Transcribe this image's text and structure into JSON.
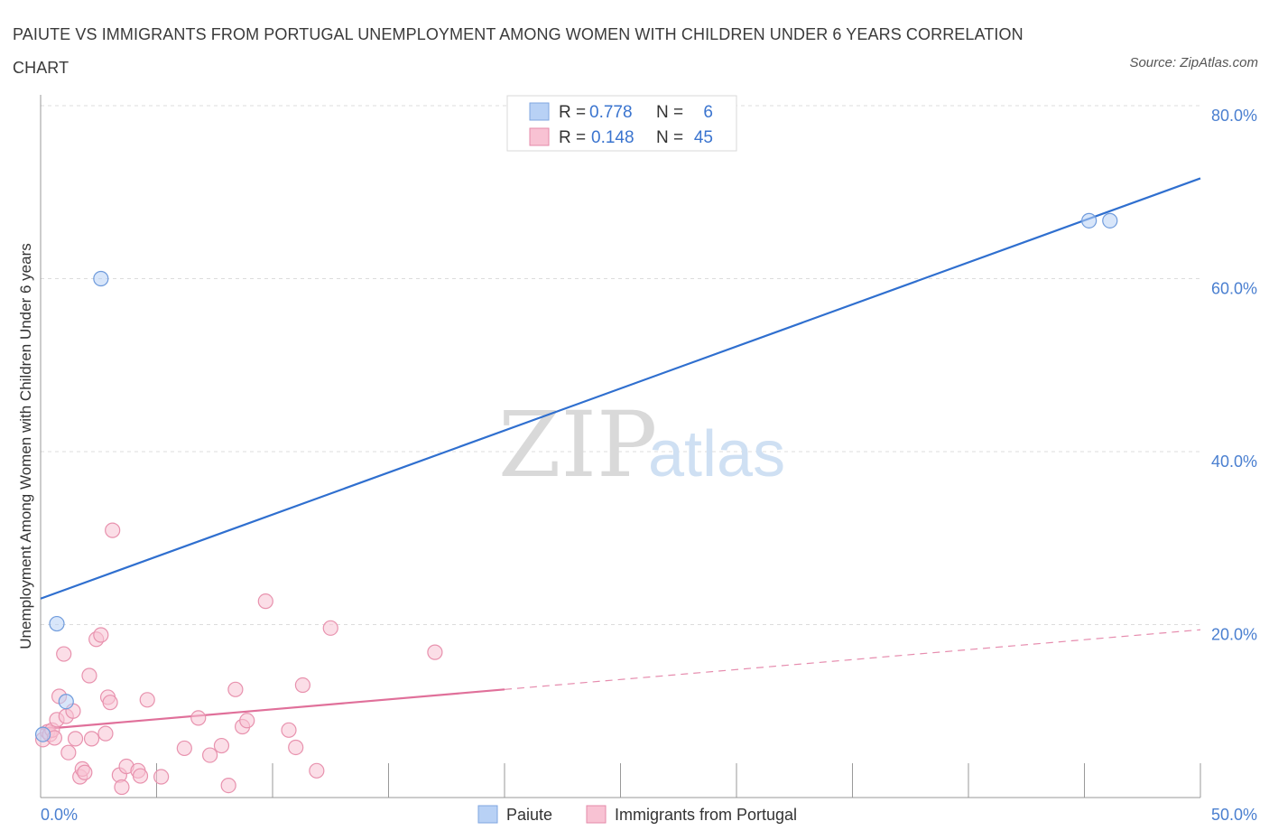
{
  "title": "PAIUTE VS IMMIGRANTS FROM PORTUGAL UNEMPLOYMENT AMONG WOMEN WITH CHILDREN UNDER 6 YEARS CORRELATION CHART",
  "source": "Source: ZipAtlas.com",
  "watermark": {
    "zip": "ZIP",
    "atlas": "atlas"
  },
  "legend_box": [
    {
      "r_label": "R =",
      "r_value": "0.778",
      "n_label": "N =",
      "n_value": "6",
      "color": "#b8d1f5",
      "border": "#7fa6e0"
    },
    {
      "r_label": "R =",
      "r_value": "0.148",
      "n_label": "N =",
      "n_value": "45",
      "color": "#f8c2d3",
      "border": "#e48aaa"
    }
  ],
  "chart_data": {
    "type": "scatter",
    "title": "PAIUTE VS IMMIGRANTS FROM PORTUGAL UNEMPLOYMENT AMONG WOMEN WITH CHILDREN UNDER 6 YEARS CORRELATION CHART",
    "xlabel": "",
    "ylabel": "Unemployment Among Women with Children Under 6 years",
    "xlim": [
      0,
      50
    ],
    "ylim": [
      0,
      80
    ],
    "x_tick_labels": [
      "0.0%",
      "50.0%"
    ],
    "y_ticks": [
      20,
      40,
      60,
      80
    ],
    "y_tick_labels": [
      "20.0%",
      "40.0%",
      "60.0%",
      "80.0%"
    ],
    "grid": true,
    "legend_position": "top-center",
    "series": [
      {
        "name": "Paiute",
        "color": "#b8d1f5",
        "stroke": "#6f9bdc",
        "line_color": "#2f6fcf",
        "points": [
          [
            0.1,
            7.3
          ],
          [
            2.6,
            60.0
          ],
          [
            0.7,
            20.1
          ],
          [
            1.1,
            11.1
          ],
          [
            45.2,
            66.7
          ],
          [
            46.1,
            66.7
          ]
        ],
        "trend": {
          "x": [
            0,
            50
          ],
          "y": [
            23.0,
            71.6
          ],
          "dashed_from": null
        }
      },
      {
        "name": "Immigrants from Portugal",
        "color": "#f8c2d3",
        "stroke": "#e892ae",
        "line_color": "#e0709a",
        "points": [
          [
            0.1,
            6.7
          ],
          [
            0.3,
            7.6
          ],
          [
            0.4,
            7.3
          ],
          [
            0.5,
            7.8
          ],
          [
            0.6,
            6.9
          ],
          [
            0.7,
            9.0
          ],
          [
            0.8,
            11.7
          ],
          [
            1.0,
            16.6
          ],
          [
            1.1,
            9.4
          ],
          [
            1.2,
            5.2
          ],
          [
            1.4,
            10.0
          ],
          [
            1.5,
            6.8
          ],
          [
            1.7,
            2.4
          ],
          [
            1.8,
            3.3
          ],
          [
            1.9,
            2.9
          ],
          [
            2.1,
            14.1
          ],
          [
            2.2,
            6.8
          ],
          [
            2.4,
            18.3
          ],
          [
            2.6,
            18.8
          ],
          [
            2.8,
            7.4
          ],
          [
            2.9,
            11.6
          ],
          [
            3.0,
            11.0
          ],
          [
            3.1,
            30.9
          ],
          [
            3.4,
            2.6
          ],
          [
            3.5,
            1.2
          ],
          [
            3.7,
            3.6
          ],
          [
            4.2,
            3.1
          ],
          [
            4.3,
            2.5
          ],
          [
            4.6,
            11.3
          ],
          [
            5.2,
            2.4
          ],
          [
            6.2,
            5.7
          ],
          [
            6.8,
            9.2
          ],
          [
            7.3,
            4.9
          ],
          [
            7.8,
            6.0
          ],
          [
            8.1,
            1.4
          ],
          [
            8.4,
            12.5
          ],
          [
            8.7,
            8.2
          ],
          [
            8.9,
            8.9
          ],
          [
            9.7,
            22.7
          ],
          [
            10.7,
            7.8
          ],
          [
            11.0,
            5.8
          ],
          [
            11.3,
            13.0
          ],
          [
            11.9,
            3.1
          ],
          [
            12.5,
            19.6
          ],
          [
            17.0,
            16.8
          ]
        ],
        "trend": {
          "x": [
            0,
            50
          ],
          "y": [
            7.9,
            19.4
          ],
          "dashed_from": 20
        }
      }
    ]
  },
  "bottom_legend": [
    {
      "label": "Paiute",
      "color": "#b8d1f5",
      "border": "#7fa6e0"
    },
    {
      "label": "Immigrants from Portugal",
      "color": "#f8c2d3",
      "border": "#e48aaa"
    }
  ]
}
